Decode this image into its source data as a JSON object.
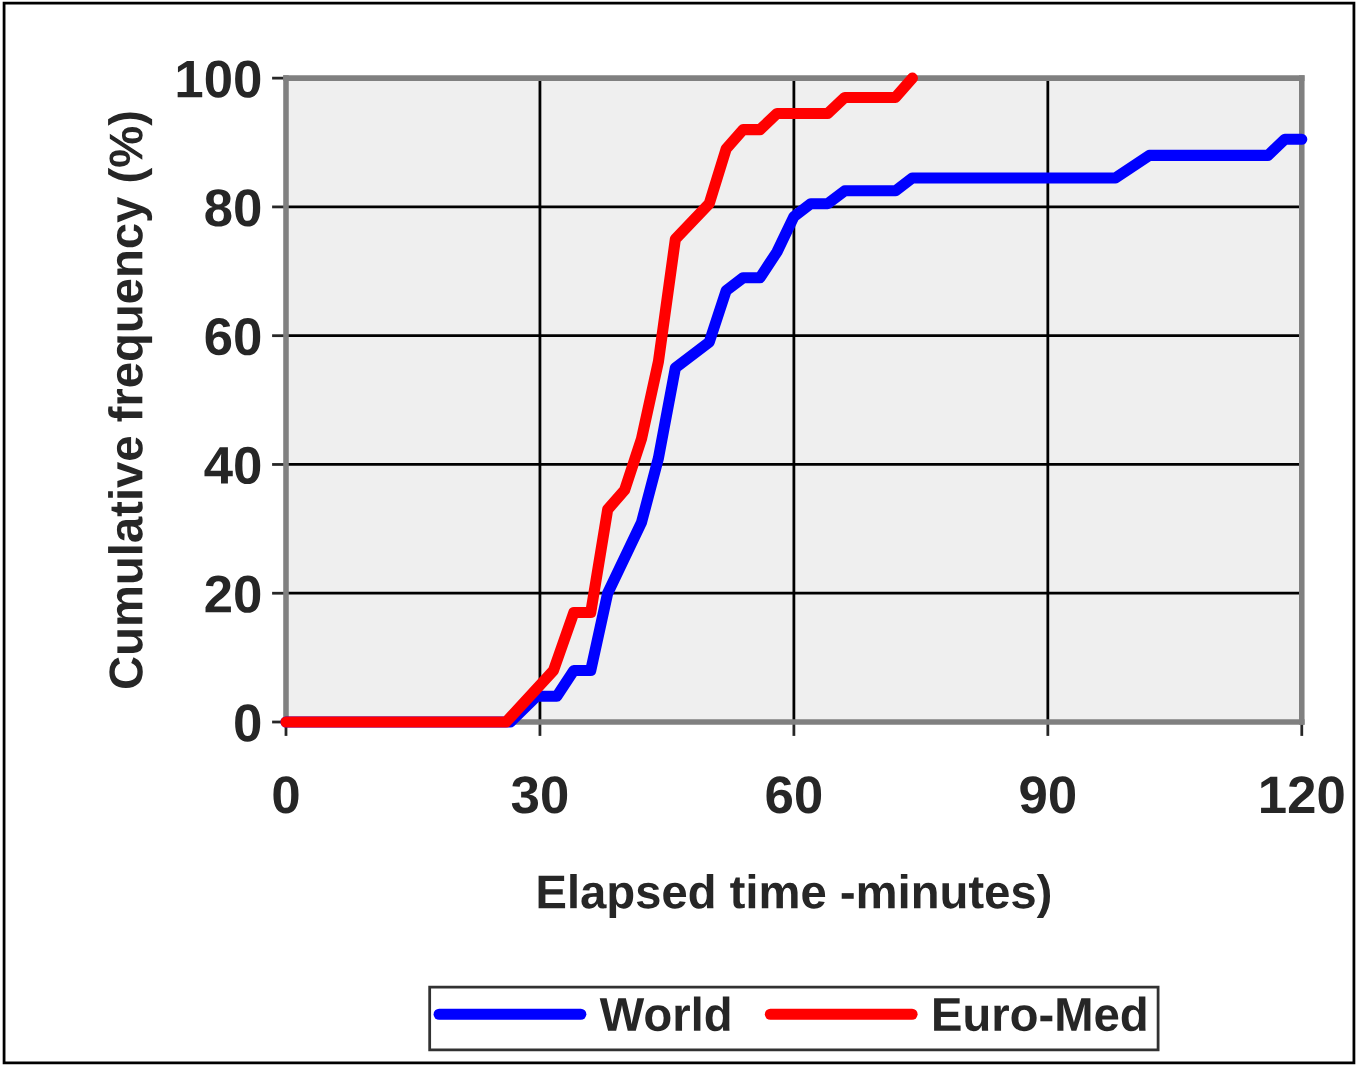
{
  "chart_data": {
    "type": "line",
    "xlabel": "Elapsed time -minutes)",
    "ylabel": "Cumulative frequency (%)",
    "xlim": [
      0,
      120
    ],
    "xticks": [
      0,
      30,
      60,
      90,
      120
    ],
    "ylim": [
      0,
      100
    ],
    "yticks": [
      0,
      20,
      40,
      60,
      80,
      100
    ],
    "grid": true,
    "legend": "bottom",
    "marker": "none",
    "line_style": "solid",
    "series": [
      {
        "name": "World",
        "color": "#0000ff",
        "x": [
          0,
          26.5,
          29.6,
          32,
          34,
          36,
          38,
          42,
          44,
          46,
          50,
          52,
          54,
          56,
          58,
          60,
          62,
          64,
          66,
          72,
          74,
          98,
          102,
          116,
          118,
          120
        ],
        "values": [
          0,
          0,
          4,
          4,
          8,
          8,
          20,
          31,
          41,
          55,
          59,
          67,
          69,
          69,
          73,
          78.5,
          80.5,
          80.5,
          82.5,
          82.5,
          84.5,
          84.5,
          88,
          88,
          90.5,
          90.5
        ]
      },
      {
        "name": "Euro-Med",
        "color": "#ff0000",
        "x": [
          0,
          26,
          31.6,
          34,
          36,
          38,
          40,
          42,
          44,
          46,
          50,
          52,
          54,
          56,
          58,
          64,
          66,
          72,
          74
        ],
        "values": [
          0,
          0,
          8,
          17,
          17,
          33,
          36,
          44,
          56,
          75,
          80.5,
          89,
          92,
          92,
          94.5,
          94.5,
          97,
          97,
          100
        ]
      }
    ]
  }
}
